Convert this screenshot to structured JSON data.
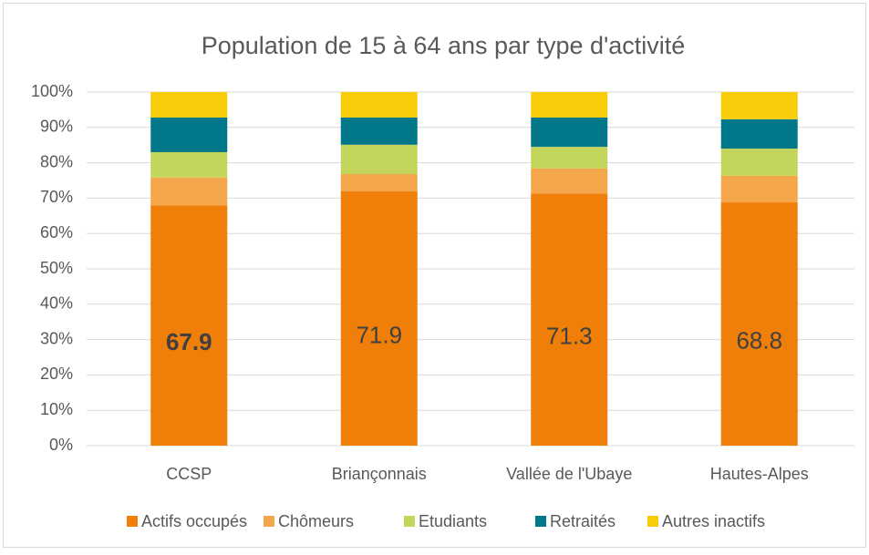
{
  "chart_data": {
    "type": "bar",
    "stacked": true,
    "title": "Population de 15 à 64 ans par type d'activité",
    "categories": [
      "CCSP",
      "Briançonnais",
      "Vallée de l'Ubaye",
      "Hautes-Alpes"
    ],
    "series": [
      {
        "name": "Actifs occupés",
        "color": "#f07f09",
        "values": [
          67.9,
          71.9,
          71.3,
          68.8
        ]
      },
      {
        "name": "Chômeurs",
        "color": "#f4a74a",
        "values": [
          7.9,
          4.9,
          7.1,
          7.5
        ]
      },
      {
        "name": "Etudiants",
        "color": "#c3d65b",
        "values": [
          7.2,
          8.3,
          6.1,
          7.7
        ]
      },
      {
        "name": "Retraités",
        "color": "#00788a",
        "values": [
          9.8,
          7.7,
          8.3,
          8.3
        ]
      },
      {
        "name": "Autres inactifs",
        "color": "#f9cc0a",
        "values": [
          7.2,
          7.2,
          7.2,
          7.7
        ]
      }
    ],
    "ylim": [
      0,
      100
    ],
    "yticks": [
      {
        "value": 0,
        "label": "0%"
      },
      {
        "value": 10,
        "label": "10%"
      },
      {
        "value": 20,
        "label": "20%"
      },
      {
        "value": 30,
        "label": "30%"
      },
      {
        "value": 40,
        "label": "40%"
      },
      {
        "value": 50,
        "label": "50%"
      },
      {
        "value": 60,
        "label": "60%"
      },
      {
        "value": 70,
        "label": "70%"
      },
      {
        "value": 80,
        "label": "80%"
      },
      {
        "value": 90,
        "label": "90%"
      },
      {
        "value": 100,
        "label": "100%"
      }
    ],
    "grid": true,
    "legend": "bottom"
  }
}
